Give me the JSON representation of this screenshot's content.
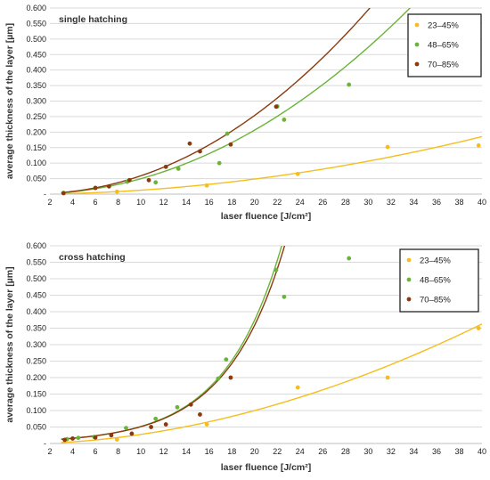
{
  "chart_data": [
    {
      "type": "scatter",
      "title": "single hatching",
      "xlabel": "laser fluence [J/cm²]",
      "ylabel": "average thickness of the layer [µm]",
      "xlim": [
        2,
        40
      ],
      "ylim": [
        0,
        0.6
      ],
      "x_ticks": [
        "2",
        "4",
        "6",
        "8",
        "10",
        "12",
        "14",
        "16",
        "18",
        "20",
        "22",
        "24",
        "26",
        "28",
        "30",
        "32",
        "34",
        "36",
        "38",
        "40"
      ],
      "y_ticks": [
        "-",
        "0.050",
        "0.100",
        "0.150",
        "0.200",
        "0.250",
        "0.300",
        "0.350",
        "0.400",
        "0.450",
        "0.500",
        "0.550",
        "0.600"
      ],
      "grid": "horizontal",
      "legend": "top-right",
      "series": [
        {
          "name": "23–45%",
          "color": "#f5be1e",
          "points": [
            [
              7.9,
              0.008
            ],
            [
              15.8,
              0.028
            ],
            [
              23.8,
              0.065
            ],
            [
              31.7,
              0.152
            ],
            [
              39.7,
              0.157
            ]
          ],
          "trend": {
            "type": "power",
            "a": 0.00015,
            "b": 1.93
          }
        },
        {
          "name": "48–65%",
          "color": "#6bb33a",
          "points": [
            [
              3.2,
              0.004
            ],
            [
              6.0,
              0.02
            ],
            [
              8.8,
              0.04
            ],
            [
              11.3,
              0.038
            ],
            [
              13.3,
              0.082
            ],
            [
              16.9,
              0.1
            ],
            [
              17.6,
              0.195
            ],
            [
              22.0,
              0.283
            ],
            [
              22.6,
              0.24
            ],
            [
              28.3,
              0.353
            ]
          ],
          "trend": {
            "type": "power",
            "a": 0.000444,
            "b": 2.05
          }
        },
        {
          "name": "70–85%",
          "color": "#8b3a0f",
          "points": [
            [
              3.2,
              0.003
            ],
            [
              6.0,
              0.02
            ],
            [
              7.2,
              0.025
            ],
            [
              9.0,
              0.045
            ],
            [
              10.7,
              0.045
            ],
            [
              12.2,
              0.088
            ],
            [
              14.3,
              0.163
            ],
            [
              15.2,
              0.138
            ],
            [
              17.9,
              0.16
            ],
            [
              21.9,
              0.282
            ]
          ],
          "trend": {
            "type": "power",
            "a": 0.00047,
            "b": 2.1
          }
        }
      ]
    },
    {
      "type": "scatter",
      "title": "cross hatching",
      "xlabel": "laser fluence [J/cm²]",
      "ylabel": "average thickness of the layer [µm]",
      "xlim": [
        2,
        40
      ],
      "ylim": [
        0,
        0.6
      ],
      "x_ticks": [
        "2",
        "4",
        "6",
        "8",
        "10",
        "12",
        "14",
        "16",
        "18",
        "20",
        "22",
        "24",
        "26",
        "28",
        "30",
        "32",
        "34",
        "36",
        "38",
        "40"
      ],
      "y_ticks": [
        "-",
        "0.050",
        "0.100",
        "0.150",
        "0.200",
        "0.250",
        "0.300",
        "0.350",
        "0.400",
        "0.450",
        "0.500",
        "0.550",
        "0.600"
      ],
      "grid": "horizontal",
      "legend": "top-right",
      "series": [
        {
          "name": "23–45%",
          "color": "#f5be1e",
          "points": [
            [
              7.9,
              0.012
            ],
            [
              15.8,
              0.058
            ],
            [
              23.8,
              0.17
            ],
            [
              31.7,
              0.2
            ],
            [
              39.7,
              0.35
            ]
          ],
          "trend": {
            "type": "power",
            "a": 0.00038,
            "b": 1.86
          }
        },
        {
          "name": "48–65%",
          "color": "#6bb33a",
          "points": [
            [
              3.5,
              0.013
            ],
            [
              4.5,
              0.017
            ],
            [
              5.9,
              0.02
            ],
            [
              8.7,
              0.047
            ],
            [
              11.3,
              0.075
            ],
            [
              13.2,
              0.11
            ],
            [
              16.8,
              0.197
            ],
            [
              17.5,
              0.255
            ],
            [
              21.9,
              0.527
            ],
            [
              22.6,
              0.445
            ],
            [
              28.3,
              0.562
            ]
          ],
          "trend": {
            "type": "exponential",
            "a": 0.00713,
            "b": 0.198
          }
        },
        {
          "name": "70–85%",
          "color": "#8b3a0f",
          "points": [
            [
              3.3,
              0.011
            ],
            [
              4.0,
              0.015
            ],
            [
              6.0,
              0.018
            ],
            [
              7.4,
              0.025
            ],
            [
              9.2,
              0.03
            ],
            [
              10.9,
              0.05
            ],
            [
              12.2,
              0.058
            ],
            [
              14.4,
              0.118
            ],
            [
              15.2,
              0.088
            ],
            [
              17.9,
              0.2
            ]
          ],
          "trend": {
            "type": "exponential",
            "a": 0.00726,
            "b": 0.195
          }
        }
      ]
    }
  ]
}
